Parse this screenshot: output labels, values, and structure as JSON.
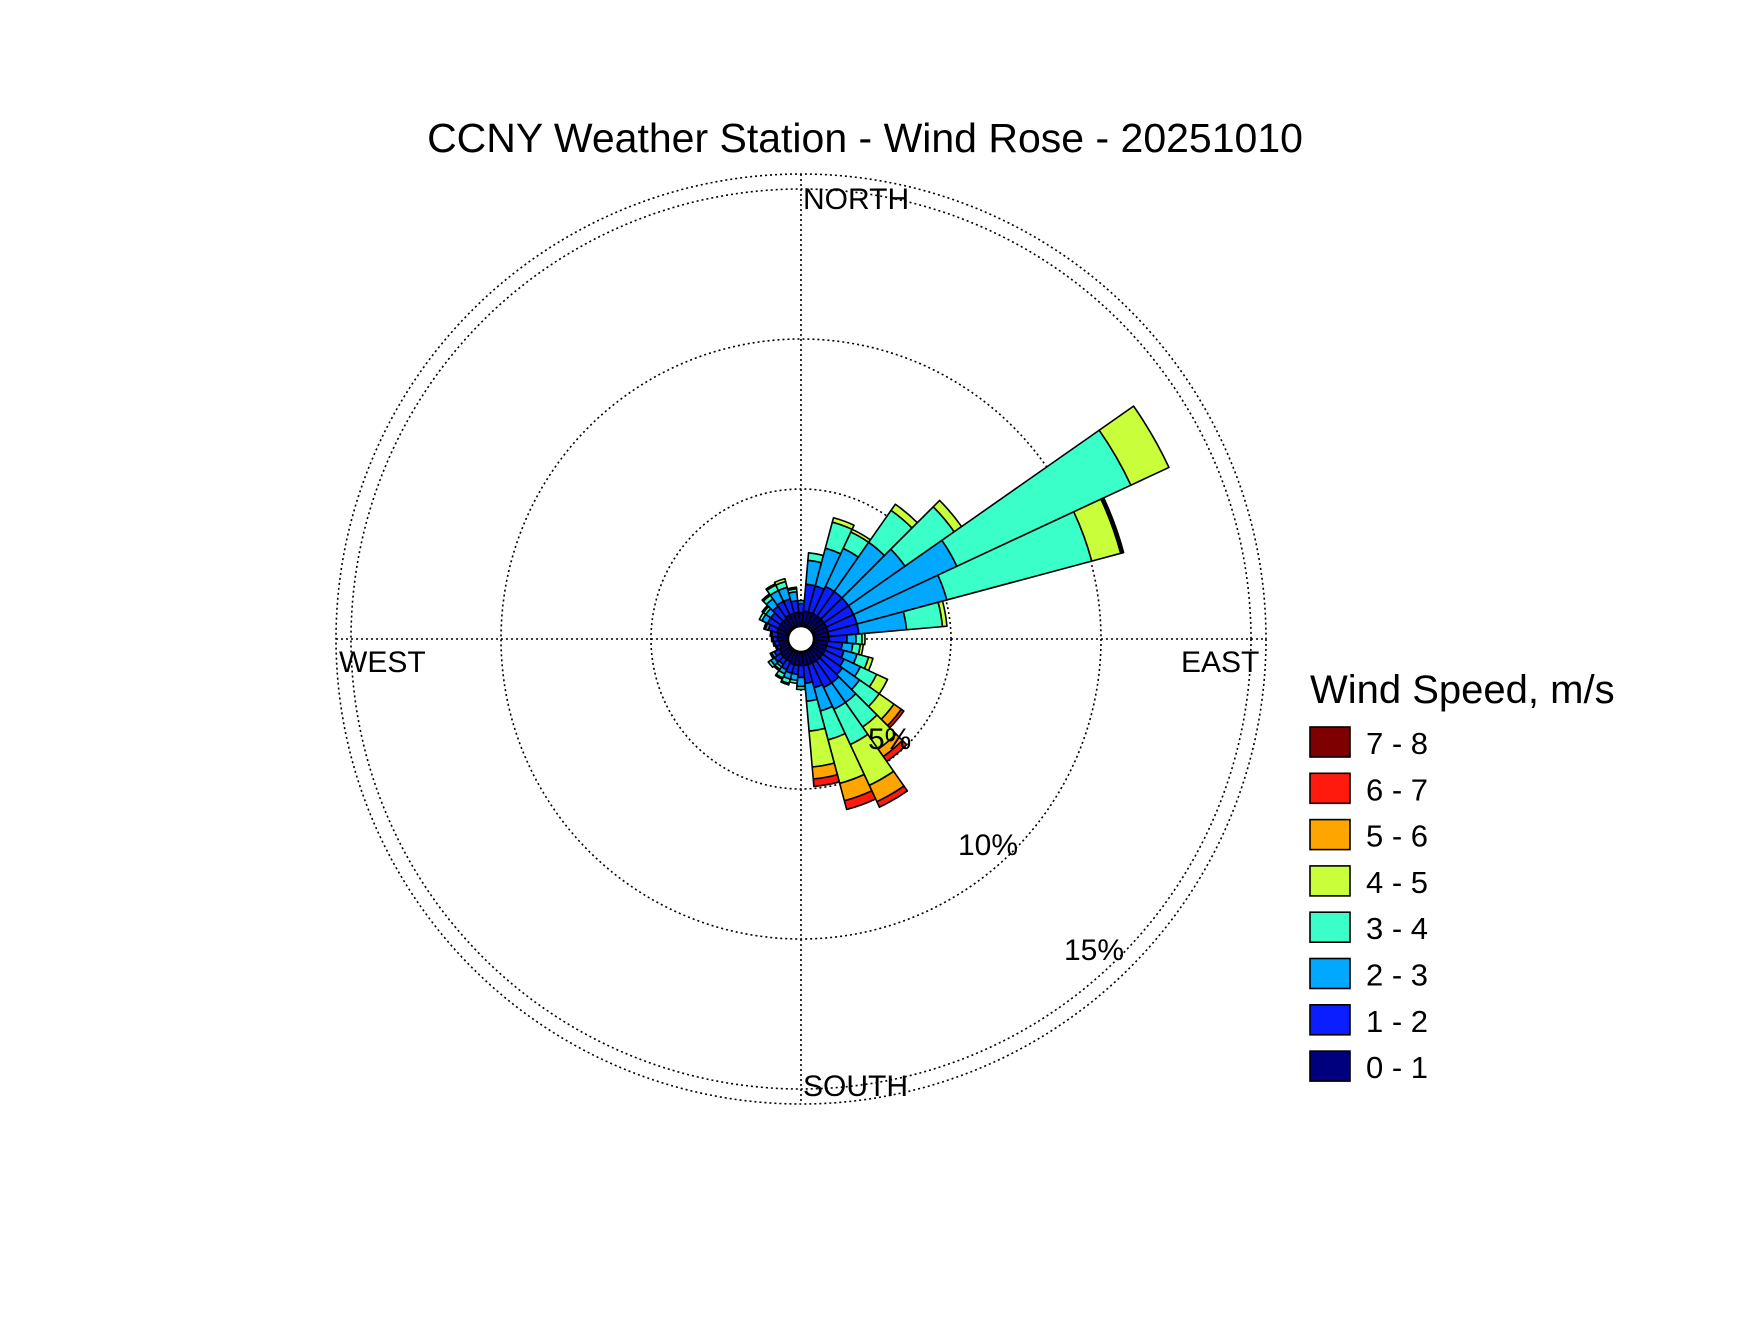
{
  "chart_data": {
    "type": "wind-rose",
    "title": "CCNY Weather Station - Wind Rose - 20251010",
    "direction_labels": {
      "north": "NORTH",
      "east": "EAST",
      "south": "SOUTH",
      "west": "WEST"
    },
    "radial_unit": "%",
    "radial_ticks": [
      {
        "value": 5,
        "label": "5%"
      },
      {
        "value": 10,
        "label": "10%"
      },
      {
        "value": 15,
        "label": "15%"
      }
    ],
    "radial_max": 15.5,
    "grid": true,
    "legend": {
      "title": "Wind Speed, m/s",
      "placement": "right",
      "items": [
        {
          "label": "7 - 8",
          "color": "#7f0000"
        },
        {
          "label": "6 - 7",
          "color": "#ff1a0d"
        },
        {
          "label": "5 - 6",
          "color": "#ffa500"
        },
        {
          "label": "4 - 5",
          "color": "#c8ff3a"
        },
        {
          "label": "3 - 4",
          "color": "#3affc8"
        },
        {
          "label": "2 - 3",
          "color": "#00a8ff"
        },
        {
          "label": "1 - 2",
          "color": "#0a1eff"
        },
        {
          "label": "0 - 1",
          "color": "#00007f"
        }
      ]
    },
    "speed_bins": [
      "0 - 1",
      "1 - 2",
      "2 - 3",
      "3 - 4",
      "4 - 5",
      "5 - 6",
      "6 - 7",
      "7 - 8"
    ],
    "bin_colors": [
      "#00007f",
      "#0a1eff",
      "#00a8ff",
      "#3affc8",
      "#c8ff3a",
      "#ffa500",
      "#ff1a0d",
      "#7f0000"
    ],
    "sector_width_deg": 10,
    "sectors": [
      {
        "dir": 0,
        "values": [
          0.45,
          0.3,
          0.1,
          0.0,
          0,
          0,
          0,
          0
        ]
      },
      {
        "dir": 10,
        "values": [
          0.5,
          0.9,
          0.8,
          0.25,
          0,
          0,
          0,
          0
        ]
      },
      {
        "dir": 20,
        "values": [
          0.5,
          0.9,
          1.3,
          0.9,
          0.15,
          0,
          0,
          0
        ]
      },
      {
        "dir": 30,
        "values": [
          0.5,
          1.0,
          1.4,
          0.6,
          0.1,
          0,
          0,
          0
        ]
      },
      {
        "dir": 40,
        "values": [
          0.5,
          1.0,
          2.0,
          1.3,
          0.25,
          0,
          0,
          0
        ]
      },
      {
        "dir": 50,
        "values": [
          0.5,
          1.0,
          2.3,
          2.0,
          0.3,
          0,
          0,
          0
        ]
      },
      {
        "dir": 60,
        "values": [
          0.5,
          1.0,
          3.8,
          6.4,
          1.4,
          0,
          0,
          0
        ]
      },
      {
        "dir": 70,
        "values": [
          0.5,
          1.0,
          3.1,
          5.0,
          1.0,
          0.05,
          0.05,
          0
        ]
      },
      {
        "dir": 80,
        "values": [
          0.5,
          1.0,
          1.6,
          1.2,
          0.15,
          0,
          0,
          0
        ]
      },
      {
        "dir": 90,
        "values": [
          0.5,
          0.6,
          0.3,
          0.2,
          0.1,
          0,
          0,
          0
        ]
      },
      {
        "dir": 100,
        "values": [
          0.45,
          0.5,
          0.35,
          0.25,
          0.1,
          0,
          0,
          0
        ]
      },
      {
        "dir": 110,
        "values": [
          0.45,
          0.6,
          0.45,
          0.4,
          0.15,
          0,
          0,
          0
        ]
      },
      {
        "dir": 120,
        "values": [
          0.45,
          0.7,
          0.6,
          0.6,
          0.4,
          0,
          0,
          0
        ]
      },
      {
        "dir": 130,
        "values": [
          0.45,
          0.8,
          0.7,
          0.8,
          0.6,
          0.3,
          0.1,
          0
        ]
      },
      {
        "dir": 140,
        "values": [
          0.45,
          0.9,
          0.8,
          1.0,
          0.9,
          0.3,
          0.2,
          0
        ]
      },
      {
        "dir": 150,
        "values": [
          0.45,
          0.9,
          0.8,
          1.3,
          1.5,
          0.6,
          0.2,
          0
        ]
      },
      {
        "dir": 160,
        "values": [
          0.45,
          0.8,
          0.8,
          1.0,
          1.5,
          0.6,
          0.3,
          0
        ]
      },
      {
        "dir": 170,
        "values": [
          0.45,
          0.6,
          0.6,
          1.0,
          1.2,
          0.4,
          0.25,
          0
        ]
      },
      {
        "dir": 180,
        "values": [
          0.45,
          0.4,
          0.3,
          0.1,
          0,
          0,
          0,
          0
        ]
      },
      {
        "dir": 190,
        "values": [
          0.45,
          0.3,
          0.2,
          0.1,
          0,
          0,
          0,
          0
        ]
      },
      {
        "dir": 200,
        "values": [
          0.45,
          0.3,
          0.2,
          0.15,
          0.05,
          0,
          0,
          0
        ]
      },
      {
        "dir": 210,
        "values": [
          0.4,
          0.3,
          0.15,
          0.15,
          0.05,
          0,
          0,
          0
        ]
      },
      {
        "dir": 220,
        "values": [
          0.4,
          0.2,
          0.1,
          0.1,
          0.05,
          0,
          0,
          0
        ]
      },
      {
        "dir": 230,
        "values": [
          0.4,
          0.25,
          0.15,
          0.1,
          0,
          0,
          0,
          0
        ]
      },
      {
        "dir": 240,
        "values": [
          0.35,
          0.2,
          0.1,
          0.05,
          0,
          0,
          0,
          0
        ]
      },
      {
        "dir": 250,
        "values": [
          0.3,
          0.1,
          0.05,
          0,
          0,
          0,
          0,
          0
        ]
      },
      {
        "dir": 260,
        "values": [
          0.3,
          0.15,
          0.05,
          0,
          0,
          0,
          0,
          0
        ]
      },
      {
        "dir": 270,
        "values": [
          0.35,
          0.15,
          0.05,
          0,
          0,
          0,
          0,
          0
        ]
      },
      {
        "dir": 280,
        "values": [
          0.35,
          0.2,
          0.05,
          0,
          0,
          0,
          0,
          0
        ]
      },
      {
        "dir": 290,
        "values": [
          0.4,
          0.3,
          0.1,
          0.05,
          0,
          0,
          0,
          0
        ]
      },
      {
        "dir": 300,
        "values": [
          0.4,
          0.4,
          0.2,
          0.1,
          0,
          0,
          0,
          0
        ]
      },
      {
        "dir": 310,
        "values": [
          0.4,
          0.4,
          0.2,
          0.1,
          0.05,
          0,
          0,
          0
        ]
      },
      {
        "dir": 320,
        "values": [
          0.4,
          0.5,
          0.3,
          0.15,
          0.05,
          0,
          0,
          0
        ]
      },
      {
        "dir": 330,
        "values": [
          0.45,
          0.5,
          0.4,
          0.2,
          0.05,
          0,
          0,
          0
        ]
      },
      {
        "dir": 340,
        "values": [
          0.45,
          0.5,
          0.4,
          0.2,
          0.1,
          0,
          0,
          0
        ]
      },
      {
        "dir": 350,
        "values": [
          0.45,
          0.4,
          0.3,
          0.1,
          0.05,
          0,
          0,
          0
        ]
      }
    ]
  }
}
